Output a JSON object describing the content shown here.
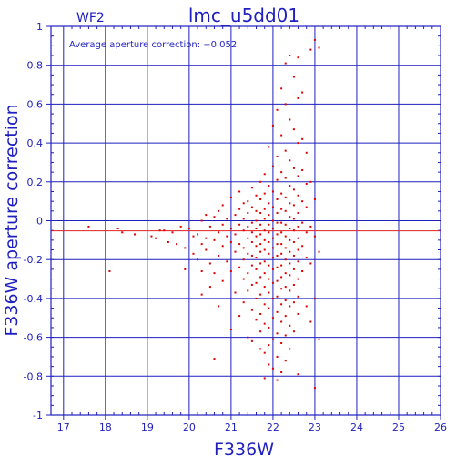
{
  "chart_data": {
    "type": "scatter",
    "title": "lmc_u5dd01",
    "subtitle": "WF2",
    "annotation": "Average aperture correction: −0.052",
    "xlabel": "F336W",
    "ylabel": "F336W aperture correction",
    "xlim": [
      16.7,
      26.0
    ],
    "ylim": [
      -1,
      1
    ],
    "x_ticks": [
      "17",
      "18",
      "19",
      "20",
      "21",
      "22",
      "23",
      "24",
      "25",
      "26"
    ],
    "y_ticks": [
      "-1",
      "-0.8",
      "-0.6",
      "-0.4",
      "-0.2",
      "0",
      "0.2",
      "0.4",
      "0.6",
      "0.8",
      "1"
    ],
    "grid": true,
    "reference_line": {
      "y": -0.052,
      "color": "#e02020"
    },
    "colors": {
      "axes": "#1f1fbf",
      "points": "#e00000"
    },
    "points": [
      [
        17.6,
        -0.03
      ],
      [
        18.1,
        -0.26
      ],
      [
        18.3,
        -0.04
      ],
      [
        18.4,
        -0.06
      ],
      [
        18.7,
        -0.07
      ],
      [
        19.1,
        -0.08
      ],
      [
        19.2,
        -0.09
      ],
      [
        19.3,
        -0.05
      ],
      [
        19.4,
        -0.05
      ],
      [
        19.5,
        -0.11
      ],
      [
        19.6,
        -0.06
      ],
      [
        19.7,
        -0.12
      ],
      [
        19.8,
        -0.03
      ],
      [
        19.9,
        -0.14
      ],
      [
        19.9,
        -0.25
      ],
      [
        20.0,
        -0.04
      ],
      [
        20.1,
        -0.08
      ],
      [
        20.1,
        -0.17
      ],
      [
        20.2,
        -0.07
      ],
      [
        20.2,
        -0.2
      ],
      [
        20.3,
        -0.0
      ],
      [
        20.3,
        -0.12
      ],
      [
        20.3,
        -0.26
      ],
      [
        20.3,
        -0.38
      ],
      [
        20.4,
        0.03
      ],
      [
        20.4,
        -0.09
      ],
      [
        20.4,
        -0.15
      ],
      [
        20.5,
        -0.03
      ],
      [
        20.5,
        -0.22
      ],
      [
        20.5,
        -0.34
      ],
      [
        20.6,
        0.02
      ],
      [
        20.6,
        -0.1
      ],
      [
        20.6,
        -0.27
      ],
      [
        20.6,
        -0.71
      ],
      [
        20.7,
        0.05
      ],
      [
        20.7,
        -0.06
      ],
      [
        20.7,
        -0.18
      ],
      [
        20.7,
        -0.44
      ],
      [
        20.8,
        0.08
      ],
      [
        20.8,
        -0.02
      ],
      [
        20.8,
        -0.13
      ],
      [
        20.8,
        -0.31
      ],
      [
        20.9,
        0.01
      ],
      [
        20.9,
        -0.08
      ],
      [
        20.9,
        -0.21
      ],
      [
        21.0,
        0.12
      ],
      [
        21.0,
        -0.04
      ],
      [
        21.0,
        -0.11
      ],
      [
        21.0,
        -0.26
      ],
      [
        21.0,
        -0.56
      ],
      [
        21.1,
        0.03
      ],
      [
        21.1,
        -0.07
      ],
      [
        21.1,
        -0.16
      ],
      [
        21.1,
        -0.37
      ],
      [
        21.2,
        0.15
      ],
      [
        21.2,
        0.06
      ],
      [
        21.2,
        -0.02
      ],
      [
        21.2,
        -0.12
      ],
      [
        21.2,
        -0.24
      ],
      [
        21.2,
        -0.49
      ],
      [
        21.3,
        0.09
      ],
      [
        21.3,
        0.01
      ],
      [
        21.3,
        -0.05
      ],
      [
        21.3,
        -0.14
      ],
      [
        21.3,
        -0.2
      ],
      [
        21.3,
        -0.3
      ],
      [
        21.3,
        -0.42
      ],
      [
        21.4,
        0.1
      ],
      [
        21.4,
        0.04
      ],
      [
        21.4,
        -0.03
      ],
      [
        21.4,
        -0.09
      ],
      [
        21.4,
        -0.17
      ],
      [
        21.4,
        -0.27
      ],
      [
        21.4,
        -0.36
      ],
      [
        21.4,
        -0.6
      ],
      [
        21.5,
        0.17
      ],
      [
        21.5,
        0.07
      ],
      [
        21.5,
        -0.01
      ],
      [
        21.5,
        -0.06
      ],
      [
        21.5,
        -0.11
      ],
      [
        21.5,
        -0.18
      ],
      [
        21.5,
        -0.23
      ],
      [
        21.5,
        -0.33
      ],
      [
        21.5,
        -0.46
      ],
      [
        21.5,
        -0.62
      ],
      [
        21.6,
        0.13
      ],
      [
        21.6,
        0.05
      ],
      [
        21.6,
        0.0
      ],
      [
        21.6,
        -0.04
      ],
      [
        21.6,
        -0.08
      ],
      [
        21.6,
        -0.13
      ],
      [
        21.6,
        -0.19
      ],
      [
        21.6,
        -0.25
      ],
      [
        21.6,
        -0.32
      ],
      [
        21.6,
        -0.4
      ],
      [
        21.6,
        -0.51
      ],
      [
        21.7,
        0.2
      ],
      [
        21.7,
        0.11
      ],
      [
        21.7,
        0.04
      ],
      [
        21.7,
        -0.02
      ],
      [
        21.7,
        -0.07
      ],
      [
        21.7,
        -0.12
      ],
      [
        21.7,
        -0.16
      ],
      [
        21.7,
        -0.22
      ],
      [
        21.7,
        -0.29
      ],
      [
        21.7,
        -0.38
      ],
      [
        21.7,
        -0.48
      ],
      [
        21.7,
        -0.57
      ],
      [
        21.7,
        -0.66
      ],
      [
        21.8,
        0.24
      ],
      [
        21.8,
        0.14
      ],
      [
        21.8,
        0.06
      ],
      [
        21.8,
        0.01
      ],
      [
        21.8,
        -0.05
      ],
      [
        21.8,
        -0.1
      ],
      [
        21.8,
        -0.15
      ],
      [
        21.8,
        -0.21
      ],
      [
        21.8,
        -0.27
      ],
      [
        21.8,
        -0.34
      ],
      [
        21.8,
        -0.43
      ],
      [
        21.8,
        -0.53
      ],
      [
        21.8,
        -0.68
      ],
      [
        21.8,
        -0.81
      ],
      [
        21.9,
        0.38
      ],
      [
        21.9,
        0.18
      ],
      [
        21.9,
        0.09
      ],
      [
        21.9,
        0.03
      ],
      [
        21.9,
        -0.02
      ],
      [
        21.9,
        -0.06
      ],
      [
        21.9,
        -0.11
      ],
      [
        21.9,
        -0.17
      ],
      [
        21.9,
        -0.23
      ],
      [
        21.9,
        -0.3
      ],
      [
        21.9,
        -0.37
      ],
      [
        21.9,
        -0.45
      ],
      [
        21.9,
        -0.55
      ],
      [
        21.9,
        -0.64
      ],
      [
        21.9,
        -0.74
      ],
      [
        22.0,
        0.49
      ],
      [
        22.0,
        0.28
      ],
      [
        22.0,
        0.15
      ],
      [
        22.0,
        0.07
      ],
      [
        22.0,
        0.0
      ],
      [
        22.0,
        -0.04
      ],
      [
        22.0,
        -0.09
      ],
      [
        22.0,
        -0.14
      ],
      [
        22.0,
        -0.19
      ],
      [
        22.0,
        -0.25
      ],
      [
        22.0,
        -0.32
      ],
      [
        22.0,
        -0.4
      ],
      [
        22.0,
        -0.5
      ],
      [
        22.0,
        -0.61
      ],
      [
        22.0,
        -0.76
      ],
      [
        22.1,
        0.57
      ],
      [
        22.1,
        0.33
      ],
      [
        22.1,
        0.21
      ],
      [
        22.1,
        0.11
      ],
      [
        22.1,
        0.04
      ],
      [
        22.1,
        -0.01
      ],
      [
        22.1,
        -0.07
      ],
      [
        22.1,
        -0.12
      ],
      [
        22.1,
        -0.18
      ],
      [
        22.1,
        -0.24
      ],
      [
        22.1,
        -0.31
      ],
      [
        22.1,
        -0.39
      ],
      [
        22.1,
        -0.47
      ],
      [
        22.1,
        -0.58
      ],
      [
        22.1,
        -0.7
      ],
      [
        22.1,
        -0.82
      ],
      [
        22.2,
        0.68
      ],
      [
        22.2,
        0.44
      ],
      [
        22.2,
        0.25
      ],
      [
        22.2,
        0.14
      ],
      [
        22.2,
        0.06
      ],
      [
        22.2,
        -0.01
      ],
      [
        22.2,
        -0.06
      ],
      [
        22.2,
        -0.12
      ],
      [
        22.2,
        -0.17
      ],
      [
        22.2,
        -0.23
      ],
      [
        22.2,
        -0.29
      ],
      [
        22.2,
        -0.35
      ],
      [
        22.2,
        -0.43
      ],
      [
        22.2,
        -0.52
      ],
      [
        22.2,
        -0.63
      ],
      [
        22.2,
        -0.78
      ],
      [
        22.3,
        0.81
      ],
      [
        22.3,
        0.6
      ],
      [
        22.3,
        0.36
      ],
      [
        22.3,
        0.22
      ],
      [
        22.3,
        0.12
      ],
      [
        22.3,
        0.05
      ],
      [
        22.3,
        -0.02
      ],
      [
        22.3,
        -0.08
      ],
      [
        22.3,
        -0.14
      ],
      [
        22.3,
        -0.2
      ],
      [
        22.3,
        -0.27
      ],
      [
        22.3,
        -0.34
      ],
      [
        22.3,
        -0.41
      ],
      [
        22.3,
        -0.49
      ],
      [
        22.3,
        -0.59
      ],
      [
        22.3,
        -0.72
      ],
      [
        22.4,
        0.85
      ],
      [
        22.4,
        0.52
      ],
      [
        22.4,
        0.31
      ],
      [
        22.4,
        0.18
      ],
      [
        22.4,
        0.09
      ],
      [
        22.4,
        0.02
      ],
      [
        22.4,
        -0.04
      ],
      [
        22.4,
        -0.1
      ],
      [
        22.4,
        -0.16
      ],
      [
        22.4,
        -0.22
      ],
      [
        22.4,
        -0.28
      ],
      [
        22.4,
        -0.36
      ],
      [
        22.4,
        -0.44
      ],
      [
        22.4,
        -0.54
      ],
      [
        22.4,
        -0.66
      ],
      [
        22.5,
        0.74
      ],
      [
        22.5,
        0.47
      ],
      [
        22.5,
        0.27
      ],
      [
        22.5,
        0.16
      ],
      [
        22.5,
        0.08
      ],
      [
        22.5,
        0.01
      ],
      [
        22.5,
        -0.05
      ],
      [
        22.5,
        -0.11
      ],
      [
        22.5,
        -0.18
      ],
      [
        22.5,
        -0.25
      ],
      [
        22.5,
        -0.33
      ],
      [
        22.5,
        -0.42
      ],
      [
        22.5,
        -0.57
      ],
      [
        22.6,
        0.84
      ],
      [
        22.6,
        0.63
      ],
      [
        22.6,
        0.4
      ],
      [
        22.6,
        0.23
      ],
      [
        22.6,
        0.13
      ],
      [
        22.6,
        0.04
      ],
      [
        22.6,
        -0.03
      ],
      [
        22.6,
        -0.09
      ],
      [
        22.6,
        -0.15
      ],
      [
        22.6,
        -0.21
      ],
      [
        22.6,
        -0.3
      ],
      [
        22.6,
        -0.39
      ],
      [
        22.6,
        -0.48
      ],
      [
        22.6,
        -0.79
      ],
      [
        22.7,
        0.66
      ],
      [
        22.7,
        0.42
      ],
      [
        22.7,
        0.26
      ],
      [
        22.7,
        0.1
      ],
      [
        22.7,
        -0.01
      ],
      [
        22.7,
        -0.13
      ],
      [
        22.7,
        -0.26
      ],
      [
        22.8,
        0.35
      ],
      [
        22.8,
        0.19
      ],
      [
        22.8,
        0.07
      ],
      [
        22.8,
        -0.06
      ],
      [
        22.8,
        -0.19
      ],
      [
        22.8,
        -0.44
      ],
      [
        22.9,
        0.88
      ],
      [
        22.9,
        0.2
      ],
      [
        22.9,
        -0.03
      ],
      [
        22.9,
        -0.22
      ],
      [
        22.9,
        -0.52
      ],
      [
        23.0,
        0.93
      ],
      [
        23.0,
        0.11
      ],
      [
        23.0,
        -0.08
      ],
      [
        23.0,
        -0.4
      ],
      [
        23.0,
        -0.86
      ],
      [
        23.1,
        0.89
      ],
      [
        23.1,
        -0.16
      ],
      [
        23.1,
        -0.61
      ]
    ]
  }
}
